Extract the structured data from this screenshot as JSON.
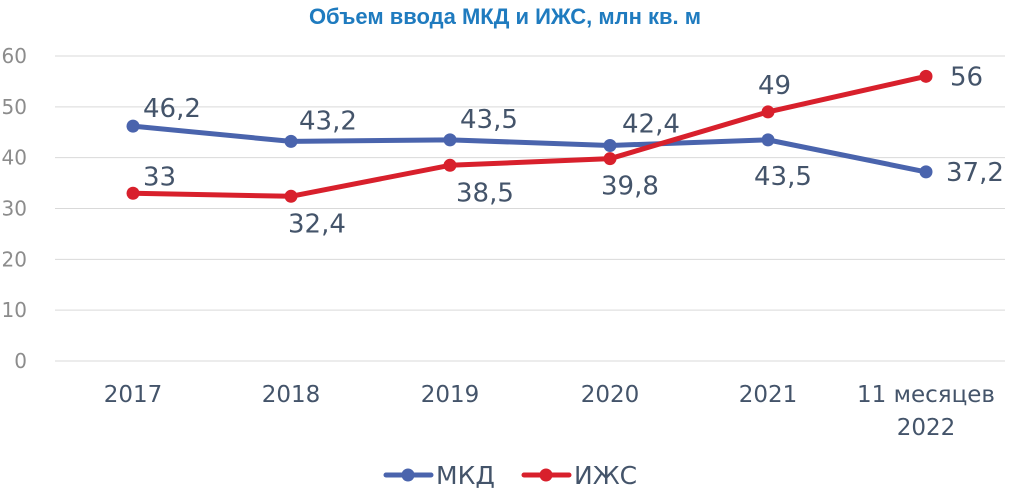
{
  "chart_data": {
    "type": "line",
    "title": "Объем ввода МКД и ИЖС, млн кв. м",
    "categories": [
      "2017",
      "2018",
      "2019",
      "2020",
      "2021",
      "11 месяцев 2022"
    ],
    "ylim": [
      0,
      60
    ],
    "yticks": [
      "0",
      "10",
      "20",
      "30",
      "40",
      "50",
      "60"
    ],
    "grid": true,
    "legend_position": "bottom",
    "series": [
      {
        "name": "МКД",
        "color": "#4a64ad",
        "values": [
          46.2,
          43.2,
          43.5,
          42.4,
          43.5,
          37.2
        ],
        "labels": [
          "46,2",
          "43,2",
          "43,5",
          "42,4",
          "43,5",
          "37,2"
        ]
      },
      {
        "name": "ИЖС",
        "color": "#d8202c",
        "values": [
          33,
          32.4,
          38.5,
          39.8,
          49,
          56
        ],
        "labels": [
          "33",
          "32,4",
          "38,5",
          "39,8",
          "49",
          "56"
        ]
      }
    ]
  }
}
